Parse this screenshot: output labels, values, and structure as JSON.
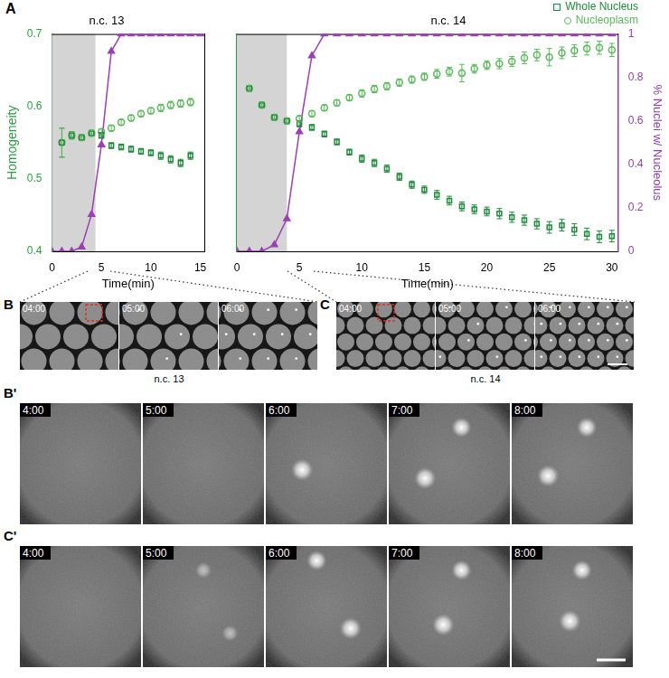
{
  "panel_label": "A",
  "chart_data": [
    {
      "type": "scatter",
      "title": "n.c. 13",
      "x_label": "Time(min)",
      "y_label": "Homogeneity",
      "xlim": [
        0,
        15.4
      ],
      "xticks": [
        0,
        5,
        10,
        15
      ],
      "ylim": [
        0.4,
        0.7
      ],
      "yticks": [
        0.4,
        0.5,
        0.6,
        0.7
      ],
      "y2lim": [
        0,
        1
      ],
      "grid": false,
      "shaded_region": [
        0,
        4.4
      ],
      "series": [
        {
          "color": "#1f8a3b",
          "marker": "open_square",
          "x": [
            1,
            2,
            3,
            4,
            5,
            6,
            7,
            8,
            9,
            10,
            11,
            12,
            13,
            14
          ],
          "values": [
            0.55,
            0.56,
            0.557,
            0.563,
            0.56,
            0.546,
            0.544,
            0.541,
            0.538,
            0.536,
            0.532,
            0.527,
            0.522,
            0.532
          ],
          "errors": [
            0.02,
            0.005,
            0.004,
            0.004,
            0.004,
            0.004,
            0.004,
            0.004,
            0.004,
            0.004,
            0.005,
            0.005,
            0.005,
            0.005
          ]
        },
        {
          "color": "#5cb85c",
          "marker": "open_circle",
          "x": [
            1,
            2,
            3,
            4,
            5,
            6,
            7,
            8,
            9,
            10,
            11,
            12,
            13,
            14
          ],
          "values": [
            0.55,
            0.56,
            0.557,
            0.563,
            0.565,
            0.57,
            0.578,
            0.584,
            0.59,
            0.594,
            0.598,
            0.602,
            0.604,
            0.606
          ],
          "errors": [
            0.02,
            0.005,
            0.004,
            0.004,
            0.004,
            0.004,
            0.004,
            0.004,
            0.004,
            0.004,
            0.005,
            0.005,
            0.005,
            0.005
          ]
        },
        {
          "type": "line",
          "color": "#9b3fb5",
          "marker": "triangle",
          "axis": "y2",
          "x": [
            0,
            1,
            2,
            3,
            4,
            5,
            6,
            7,
            8,
            9,
            10,
            11,
            12,
            13,
            14,
            15
          ],
          "values": [
            0,
            0,
            0,
            0.02,
            0.17,
            0.49,
            0.92,
            1,
            1,
            1,
            1,
            1,
            1,
            1,
            1,
            1
          ]
        }
      ]
    },
    {
      "type": "scatter",
      "title": "n.c. 14",
      "x_label": "Time(min)",
      "y2_label": "% Nuclei w/ Nucleolus",
      "xlim": [
        0,
        30.5
      ],
      "xticks": [
        0,
        5,
        10,
        15,
        20,
        25,
        30
      ],
      "ylim": [
        0.4,
        0.7
      ],
      "y2lim": [
        0,
        1
      ],
      "y2ticks": [
        0,
        0.2,
        0.4,
        0.6,
        0.8,
        1
      ],
      "grid": false,
      "legend": "top-right",
      "shaded_region": [
        0,
        4
      ],
      "series": [
        {
          "name": "Whole Nucleus",
          "color": "#1f8a3b",
          "marker": "open_square",
          "x": [
            1,
            2,
            3,
            4,
            5,
            6,
            7,
            8,
            9,
            10,
            11,
            12,
            13,
            14,
            15,
            16,
            17,
            18,
            19,
            20,
            21,
            22,
            23,
            24,
            25,
            26,
            27,
            28,
            29,
            30
          ],
          "values": [
            0.625,
            0.602,
            0.585,
            0.58,
            0.576,
            0.571,
            0.562,
            0.551,
            0.537,
            0.528,
            0.522,
            0.514,
            0.503,
            0.492,
            0.485,
            0.478,
            0.47,
            0.462,
            0.458,
            0.455,
            0.452,
            0.447,
            0.443,
            0.438,
            0.433,
            0.436,
            0.43,
            0.424,
            0.42,
            0.421
          ],
          "errors": [
            0.004,
            0.004,
            0.004,
            0.004,
            0.004,
            0.004,
            0.004,
            0.004,
            0.004,
            0.005,
            0.005,
            0.005,
            0.005,
            0.005,
            0.005,
            0.006,
            0.006,
            0.006,
            0.006,
            0.006,
            0.007,
            0.007,
            0.007,
            0.007,
            0.008,
            0.008,
            0.008,
            0.008,
            0.008,
            0.008
          ]
        },
        {
          "name": "Nucleoplasm",
          "color": "#5cb85c",
          "marker": "open_circle",
          "x": [
            1,
            2,
            3,
            4,
            5,
            6,
            7,
            8,
            9,
            10,
            11,
            12,
            13,
            14,
            15,
            16,
            17,
            18,
            19,
            20,
            21,
            22,
            23,
            24,
            25,
            26,
            27,
            28,
            29,
            30
          ],
          "values": [
            0.625,
            0.602,
            0.585,
            0.58,
            0.583,
            0.59,
            0.598,
            0.605,
            0.612,
            0.618,
            0.624,
            0.628,
            0.633,
            0.637,
            0.641,
            0.645,
            0.648,
            0.646,
            0.652,
            0.657,
            0.659,
            0.662,
            0.667,
            0.671,
            0.668,
            0.674,
            0.677,
            0.68,
            0.681,
            0.678
          ],
          "errors": [
            0.004,
            0.004,
            0.004,
            0.004,
            0.004,
            0.004,
            0.004,
            0.004,
            0.004,
            0.005,
            0.005,
            0.005,
            0.005,
            0.005,
            0.005,
            0.006,
            0.006,
            0.012,
            0.006,
            0.006,
            0.007,
            0.007,
            0.008,
            0.008,
            0.012,
            0.008,
            0.008,
            0.009,
            0.009,
            0.009
          ]
        },
        {
          "type": "line",
          "color": "#9b3fb5",
          "marker": "triangle",
          "axis": "y2",
          "x": [
            0,
            1,
            2,
            3,
            4,
            5,
            6,
            7,
            8,
            9,
            10,
            11,
            12,
            13,
            14,
            15,
            16,
            17,
            18,
            19,
            20,
            21,
            22,
            23,
            24,
            25,
            26,
            27,
            28,
            29,
            30
          ],
          "values": [
            0,
            0,
            0,
            0.03,
            0.15,
            0.55,
            0.9,
            1,
            1,
            1,
            1,
            1,
            1,
            1,
            1,
            1,
            1,
            1,
            1,
            1,
            1,
            1,
            1,
            1,
            1,
            1,
            1,
            1,
            1,
            1,
            1
          ]
        }
      ]
    }
  ],
  "image_panels": [
    {
      "label": "B",
      "caption": "n.c. 13",
      "timestamps": [
        "04:00",
        "05:00",
        "06:00"
      ]
    },
    {
      "label": "C",
      "caption": "n.c. 14",
      "timestamps": [
        "04:00",
        "05:00",
        "06:00"
      ]
    },
    {
      "label": "B'",
      "timestamps": [
        "4:00",
        "5:00",
        "6:00",
        "7:00",
        "8:00"
      ]
    },
    {
      "label": "C'",
      "timestamps": [
        "4:00",
        "5:00",
        "6:00",
        "7:00",
        "8:00"
      ]
    }
  ]
}
